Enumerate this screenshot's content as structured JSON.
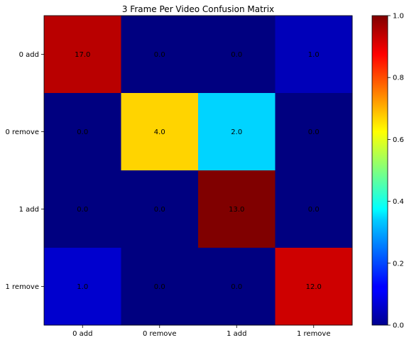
{
  "chart_data": {
    "type": "heatmap",
    "title": "3 Frame Per Video Confusion Matrix",
    "row_labels": [
      "0 add",
      "0 remove",
      "1 add",
      "1 remove"
    ],
    "col_labels": [
      "0 add",
      "0 remove",
      "1 add",
      "1 remove"
    ],
    "values": [
      [
        17.0,
        0.0,
        0.0,
        1.0
      ],
      [
        0.0,
        4.0,
        2.0,
        0.0
      ],
      [
        0.0,
        0.0,
        13.0,
        0.0
      ],
      [
        1.0,
        0.0,
        0.0,
        12.0
      ]
    ],
    "normalized": [
      [
        0.944,
        0.0,
        0.0,
        0.056
      ],
      [
        0.0,
        0.667,
        0.333,
        0.0
      ],
      [
        0.0,
        0.0,
        1.0,
        0.0
      ],
      [
        0.077,
        0.0,
        0.0,
        0.923
      ]
    ],
    "value_labels": [
      [
        "17.0",
        "0.0",
        "0.0",
        "1.0"
      ],
      [
        "0.0",
        "4.0",
        "2.0",
        "0.0"
      ],
      [
        "0.0",
        "0.0",
        "13.0",
        "0.0"
      ],
      [
        "1.0",
        "0.0",
        "0.0",
        "12.0"
      ]
    ],
    "colormap": "jet",
    "colorbar": {
      "range": [
        0.0,
        1.0
      ],
      "ticks": [
        0.0,
        0.2,
        0.4,
        0.6,
        0.8,
        1.0
      ],
      "tick_labels": [
        "0.0",
        "0.2",
        "0.4",
        "0.6",
        "0.8",
        "1.0"
      ]
    }
  }
}
